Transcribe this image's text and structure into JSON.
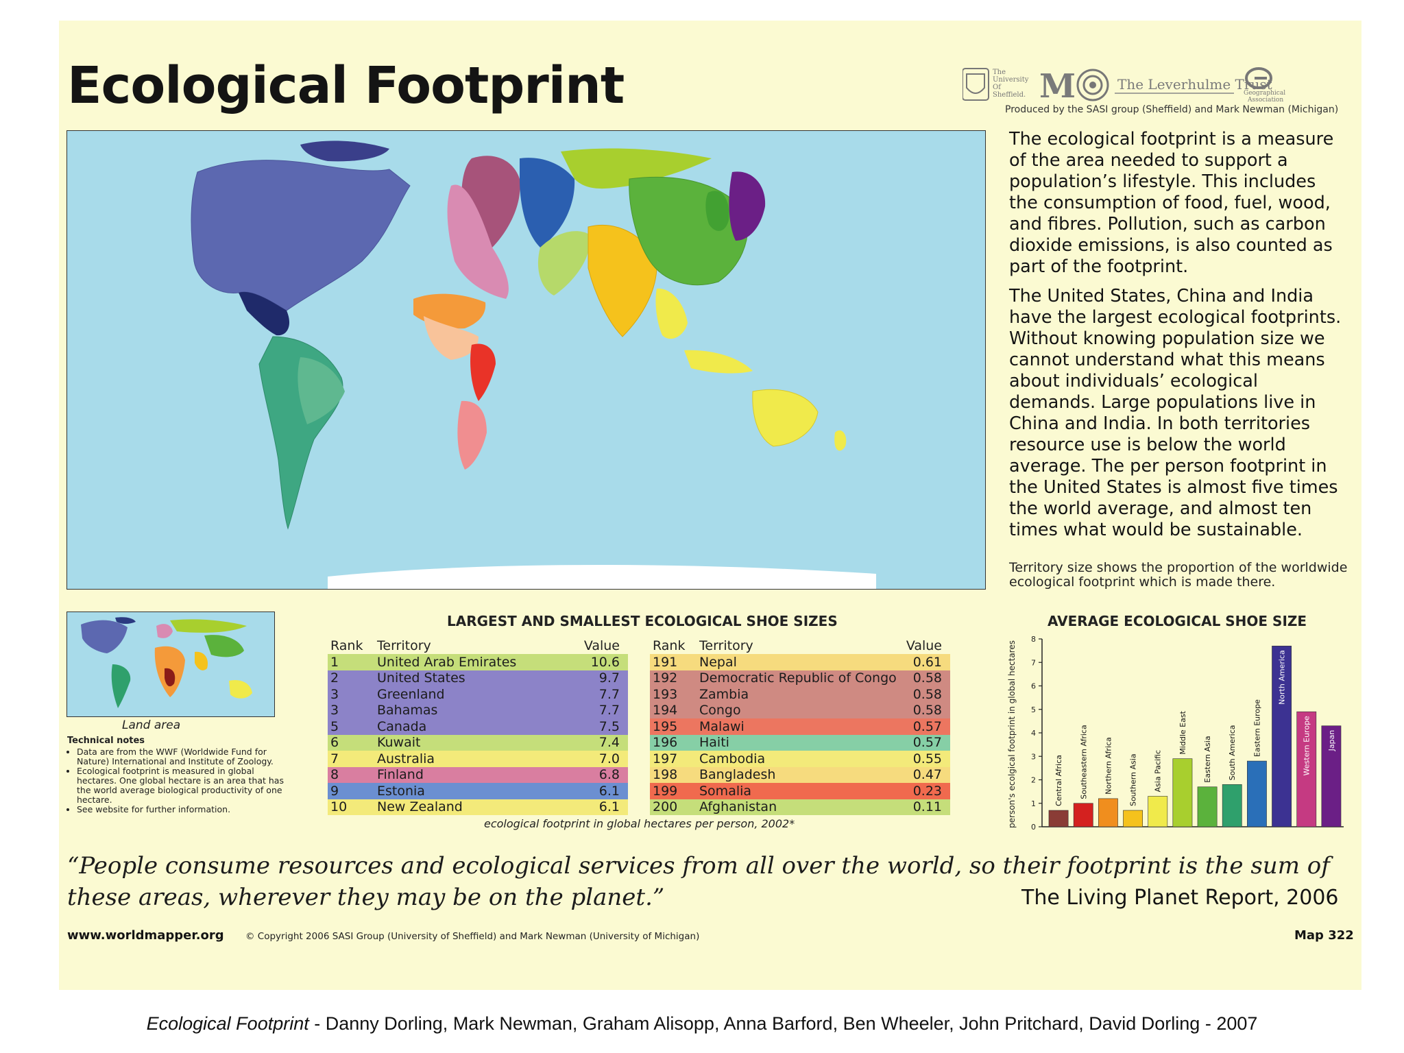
{
  "poster": {
    "title": "Ecological Footprint",
    "logos": {
      "sheffield": [
        "The",
        "University",
        "Of",
        "Sheffield."
      ],
      "michigan": "M",
      "leverhulme": "The Leverhulme Trust",
      "geographical": [
        "Geographical",
        "Association"
      ],
      "produced_by": "Produced by the SASI group (Sheffield) and Mark Newman (Michigan)"
    },
    "description": {
      "paragraph1": "The ecological footprint is a measure of the area needed to support a population’s lifestyle. This includes the consumption of food, fuel, wood, and fibres. Pollution, such as carbon dioxide emissions, is also counted as part of the footprint.",
      "paragraph2": "The United States, China and India have the largest ecological footprints. Without knowing population size we cannot understand what this means about individuals’ ecological demands. Large populations live in China and India. In both territories resource use is below the world average. The per person footprint in the United States is almost five times the world average, and almost ten times what would be sustainable."
    },
    "territory_note": "Territory size shows the proportion of the worldwide ecological footprint which is made there.",
    "mini_map_label": "Land area",
    "technical_notes": {
      "heading": "Technical notes",
      "items": [
        "Data are from the WWF (Worldwide Fund for Nature) International and Institute of Zoology.",
        "Ecological footprint is measured in global hectares. One global hectare is an area that has the world average biological productivity of one hectare.",
        "See website for further information."
      ]
    },
    "table": {
      "title": "LARGEST AND SMALLEST ECOLOGICAL SHOE SIZES",
      "headers": {
        "rank": "Rank",
        "territory": "Territory",
        "value": "Value"
      },
      "largest": [
        {
          "rank": "1",
          "territory": "United Arab Emirates",
          "value": "10.6",
          "color": "#c5de7a"
        },
        {
          "rank": "2",
          "territory": "United States",
          "value": "9.7",
          "color": "#8c83c8"
        },
        {
          "rank": "3",
          "territory": "Greenland",
          "value": "7.7",
          "color": "#8c83c8"
        },
        {
          "rank": "3",
          "territory": "Bahamas",
          "value": "7.7",
          "color": "#8c83c8"
        },
        {
          "rank": "5",
          "territory": "Canada",
          "value": "7.5",
          "color": "#8c83c8"
        },
        {
          "rank": "6",
          "territory": "Kuwait",
          "value": "7.4",
          "color": "#c5de7a"
        },
        {
          "rank": "7",
          "territory": "Australia",
          "value": "7.0",
          "color": "#f3ea7a"
        },
        {
          "rank": "8",
          "territory": "Finland",
          "value": "6.8",
          "color": "#d97ea0"
        },
        {
          "rank": "9",
          "territory": "Estonia",
          "value": "6.1",
          "color": "#6b8fd1"
        },
        {
          "rank": "10",
          "territory": "New Zealand",
          "value": "6.1",
          "color": "#f3ea7a"
        }
      ],
      "smallest": [
        {
          "rank": "191",
          "territory": "Nepal",
          "value": "0.61",
          "color": "#f6db7e"
        },
        {
          "rank": "192",
          "territory": "Democratic Republic of Congo",
          "value": "0.58",
          "color": "#cf8a82"
        },
        {
          "rank": "193",
          "territory": "Zambia",
          "value": "0.58",
          "color": "#cf8a82"
        },
        {
          "rank": "194",
          "territory": "Congo",
          "value": "0.58",
          "color": "#cf8a82"
        },
        {
          "rank": "195",
          "territory": "Malawi",
          "value": "0.57",
          "color": "#ec7660"
        },
        {
          "rank": "196",
          "territory": "Haiti",
          "value": "0.57",
          "color": "#86cfa6"
        },
        {
          "rank": "197",
          "territory": "Cambodia",
          "value": "0.55",
          "color": "#f3ea7a"
        },
        {
          "rank": "198",
          "territory": "Bangladesh",
          "value": "0.47",
          "color": "#f6db7e"
        },
        {
          "rank": "199",
          "territory": "Somalia",
          "value": "0.23",
          "color": "#f06a4e"
        },
        {
          "rank": "200",
          "territory": "Afghanistan",
          "value": "0.11",
          "color": "#c5de7a"
        }
      ],
      "caption": "ecological footprint in global hectares per person, 2002*"
    },
    "quote": "“People consume resources and ecological services from all over the world, so their footprint is the sum of these areas, wherever they may be on the planet.”",
    "quote_source": "The Living Planet Report, 2006",
    "website": "www.worldmapper.org",
    "copyright": "© Copyright 2006 SASI Group (University of Sheffield) and Mark Newman (University of Michigan)",
    "map_number": "Map 322"
  },
  "chart_data": {
    "type": "bar",
    "title": "AVERAGE ECOLOGICAL SHOE SIZE",
    "ylabel": "person's ecolgical footprint in global hectares",
    "ylim": [
      0,
      8
    ],
    "yticks": [
      "0",
      "1",
      "2",
      "3",
      "4",
      "5",
      "6",
      "7",
      "8"
    ],
    "grid": false,
    "categories": [
      "Central Africa",
      "Southeastern Africa",
      "Northern Africa",
      "Southern Asia",
      "Asia Pacific",
      "Middle East",
      "Eastern Asia",
      "South America",
      "Eastern Europe",
      "North America",
      "Western Europe",
      "Japan"
    ],
    "values": [
      0.7,
      1.0,
      1.2,
      0.7,
      1.3,
      2.9,
      1.7,
      1.8,
      2.8,
      7.7,
      4.9,
      4.3
    ],
    "colors": [
      "#8a3c36",
      "#d4211f",
      "#f08e1e",
      "#f5c21c",
      "#f0ea4b",
      "#a8cf2e",
      "#5bb23c",
      "#2fa06c",
      "#2a6fb8",
      "#3c3292",
      "#c53a82",
      "#6b1f86"
    ]
  },
  "credit": {
    "title": "Ecological Footprint",
    "rest": " - Danny Dorling, Mark Newman, Graham Alisopp, Anna Barford, Ben Wheeler, John Pritchard, David Dorling - 2007"
  }
}
